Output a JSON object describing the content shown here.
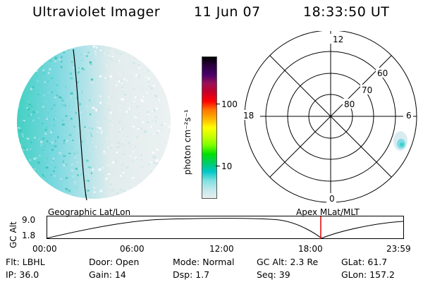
{
  "header": {
    "title": "Ultraviolet Imager",
    "date": "11 Jun 07",
    "time": "18:33:50 UT"
  },
  "colorbar": {
    "unit_label": "photon cm⁻²s⁻¹",
    "ticks": [
      "100",
      "10"
    ],
    "colors": [
      "#000000",
      "#2b0040",
      "#48006a",
      "#9c1057",
      "#c70026",
      "#ff0000",
      "#ff7700",
      "#ffb400",
      "#ffff00",
      "#c8ff00",
      "#7cff00",
      "#00e000",
      "#00cc66",
      "#00c8c8",
      "#7ee0e0",
      "#c0e8ec",
      "#e6eeee"
    ]
  },
  "polar_plot": {
    "lat_labels": [
      "60",
      "70",
      "80"
    ],
    "mlt_labels": {
      "top": "12",
      "bottom": "0",
      "left": "18",
      "right": "6"
    }
  },
  "orbit_plot": {
    "left_label": "Geographic Lat/Lon",
    "right_label": "Apex  MLat/MLT",
    "ylabel": "GC Alt",
    "y_ticks": [
      "9.0",
      "1.8"
    ],
    "x_ticks": [
      "00:00",
      "06:00",
      "12:00",
      "18:00",
      "23:59"
    ],
    "current_marker_color": "#e00000"
  },
  "info": {
    "flt": "Flt: LBHL",
    "ip": "IP: 36.0",
    "door": "Door: Open",
    "gain": "Gain: 14",
    "mode": "Mode: Normal",
    "dsp": "Dsp:    1.7",
    "gc_alt": "GC Alt: 2.3 Re",
    "seq": "Seq: 39",
    "glat": "GLat:  61.7",
    "glon": "GLon: 157.2"
  }
}
